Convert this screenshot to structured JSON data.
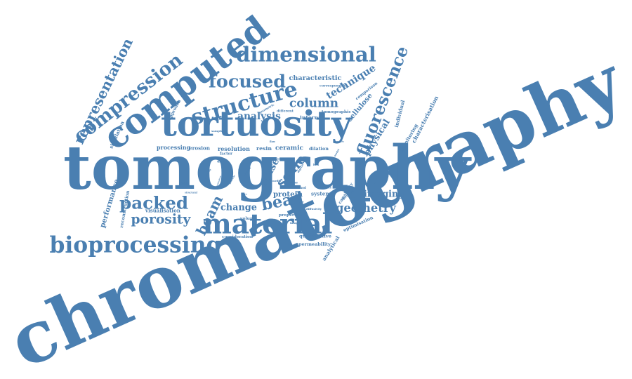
{
  "style": {
    "word_color": "#4a7fb1"
  },
  "words": [
    {
      "name": "word-chromatography",
      "text": "chromatography"
    },
    {
      "name": "word-tomography",
      "text": "tomography"
    },
    {
      "name": "word-tortuosity",
      "text": "tortuosity"
    },
    {
      "name": "word-computed",
      "text": "computed"
    },
    {
      "name": "word-material",
      "text": "material"
    },
    {
      "name": "word-bioprocessing",
      "text": "bioprocessing"
    },
    {
      "name": "word-structure",
      "text": "structure"
    },
    {
      "name": "word-dimensional",
      "text": "dimensional"
    },
    {
      "name": "word-compression",
      "text": "compression"
    },
    {
      "name": "word-fluorescence",
      "text": "fluorescence"
    },
    {
      "name": "word-packed",
      "text": "packed"
    },
    {
      "name": "word-focused",
      "text": "focused"
    },
    {
      "name": "word-porosity",
      "text": "porosity"
    },
    {
      "name": "word-representation",
      "text": "representation"
    },
    {
      "name": "word-column",
      "text": "column"
    },
    {
      "name": "word-bead",
      "text": "bead"
    },
    {
      "name": "word-geometry",
      "text": "geometry"
    },
    {
      "name": "word-beam",
      "text": "beam"
    },
    {
      "name": "word-scale",
      "text": "scale"
    },
    {
      "name": "word-imaging",
      "text": "imaging"
    },
    {
      "name": "word-technique",
      "text": "technique"
    },
    {
      "name": "word-physical",
      "text": "physical"
    },
    {
      "name": "word-change",
      "text": "change"
    },
    {
      "name": "word-reuse",
      "text": "reuse"
    },
    {
      "name": "word-analysis",
      "text": "analysis"
    },
    {
      "name": "word-cellulose",
      "text": "cellulose"
    },
    {
      "name": "word-characteristic",
      "text": "characteristic"
    },
    {
      "name": "word-performance",
      "text": "performance"
    },
    {
      "name": "word-protein",
      "text": "protein"
    },
    {
      "name": "word-processing",
      "text": "processing"
    },
    {
      "name": "word-resolution",
      "text": "resolution"
    },
    {
      "name": "word-ceramic",
      "text": "ceramic"
    },
    {
      "name": "word-system",
      "text": "system"
    },
    {
      "name": "word-individual",
      "text": "individual"
    },
    {
      "name": "word-monitoring",
      "text": "monitoring"
    },
    {
      "name": "word-characterisation",
      "text": "characterisation"
    },
    {
      "name": "word-reconstruction",
      "text": "reconstruction"
    },
    {
      "name": "word-visualisation",
      "text": "visualisation"
    },
    {
      "name": "word-internal",
      "text": "internal"
    },
    {
      "name": "word-tomographic",
      "text": "tomographic"
    },
    {
      "name": "word-resin",
      "text": "resin"
    },
    {
      "name": "word-dilation",
      "text": "dilation"
    },
    {
      "name": "word-erosion",
      "text": "erosion"
    },
    {
      "name": "word-volume",
      "text": "volume"
    },
    {
      "name": "word-quantitative",
      "text": "quantitative"
    },
    {
      "name": "word-permeability",
      "text": "permeability"
    },
    {
      "name": "word-consideration",
      "text": "consideration"
    },
    {
      "name": "word-properties",
      "text": "properties"
    },
    {
      "name": "word-capability",
      "text": "capability"
    },
    {
      "name": "word-optimisation",
      "text": "optimisation"
    },
    {
      "name": "word-analytical",
      "text": "analytical"
    },
    {
      "name": "word-simulation",
      "text": "simulation"
    },
    {
      "name": "word-approach",
      "text": "approach"
    },
    {
      "name": "word-corresponding",
      "text": "corresponding"
    },
    {
      "name": "word-comparison",
      "text": "comparison"
    },
    {
      "name": "word-different",
      "text": "different"
    },
    {
      "name": "word-geometric",
      "text": "geometric"
    },
    {
      "name": "word-factor",
      "text": "factor"
    },
    {
      "name": "word-image",
      "text": "image"
    },
    {
      "name": "word-chemical",
      "text": "chemical"
    },
    {
      "name": "word-method",
      "text": "method"
    },
    {
      "name": "word-sample",
      "text": "sample"
    },
    {
      "name": "word-diffusivity",
      "text": "diffusivity"
    },
    {
      "name": "word-value",
      "text": "value"
    },
    {
      "name": "word-structural",
      "text": "structural"
    },
    {
      "name": "word-used",
      "text": "used"
    },
    {
      "name": "word-digital",
      "text": "digital"
    },
    {
      "name": "word-media",
      "text": "media"
    },
    {
      "name": "word-capacity",
      "text": "capacity"
    },
    {
      "name": "word-operating",
      "text": "operating"
    },
    {
      "name": "word-evaluation",
      "text": "evaluation"
    },
    {
      "name": "word-particle",
      "text": "particle"
    },
    {
      "name": "word-scanning",
      "text": "scanning"
    },
    {
      "name": "word-surface",
      "text": "surface"
    },
    {
      "name": "word-length",
      "text": "length"
    },
    {
      "name": "word-data",
      "text": "data"
    },
    {
      "name": "word-model",
      "text": "model"
    },
    {
      "name": "word-flow",
      "text": "flow"
    },
    {
      "name": "word-pore",
      "text": "pore"
    },
    {
      "name": "word-bed",
      "text": "bed"
    },
    {
      "name": "word-size",
      "text": "size"
    }
  ]
}
